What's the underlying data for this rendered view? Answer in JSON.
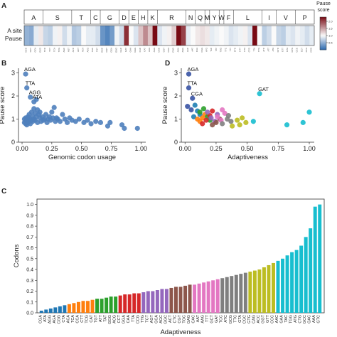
{
  "chart_data": [
    {
      "panel": "A",
      "type": "heatmap",
      "rows": [
        "A site",
        "Pause"
      ],
      "amino_acids": [
        {
          "aa": "A",
          "n": 4
        },
        {
          "aa": "S",
          "n": 6
        },
        {
          "aa": "T",
          "n": 4
        },
        {
          "aa": "C",
          "n": 2
        },
        {
          "aa": "G",
          "n": 4
        },
        {
          "aa": "D",
          "n": 2
        },
        {
          "aa": "E",
          "n": 2
        },
        {
          "aa": "H",
          "n": 2
        },
        {
          "aa": "K",
          "n": 2
        },
        {
          "aa": "R",
          "n": 6
        },
        {
          "aa": "N",
          "n": 2
        },
        {
          "aa": "Q",
          "n": 2
        },
        {
          "aa": "M",
          "n": 1
        },
        {
          "aa": "Y",
          "n": 2
        },
        {
          "aa": "W",
          "n": 1
        },
        {
          "aa": "F",
          "n": 2
        },
        {
          "aa": "L",
          "n": 6
        },
        {
          "aa": "I",
          "n": 3
        },
        {
          "aa": "V",
          "n": 4
        },
        {
          "aa": "P",
          "n": 4
        }
      ],
      "codons": [
        "GCC",
        "GCT",
        "GCA",
        "GCG",
        "TCC",
        "TCT",
        "TCA",
        "TCG",
        "AGC",
        "AGT",
        "ACC",
        "ACT",
        "ACA",
        "ACG",
        "TGC",
        "TGT",
        "GGC",
        "GGT",
        "GGA",
        "GGG",
        "GAC",
        "GAT",
        "GAA",
        "GAG",
        "CAC",
        "CAT",
        "AAA",
        "AAG",
        "CGC",
        "CGT",
        "CGA",
        "CGG",
        "AGA",
        "AGG",
        "AAC",
        "AAT",
        "CAA",
        "CAG",
        "ATG",
        "TAC",
        "TAT",
        "TGG",
        "TTC",
        "TTT",
        "CTC",
        "CTT",
        "CTA",
        "CTG",
        "TTA",
        "TTG",
        "ATC",
        "ATT",
        "ATA",
        "GTC",
        "GTT",
        "GTA",
        "GTG",
        "CCC",
        "CCT",
        "CCA",
        "CCG"
      ],
      "values": [
        0.5,
        0.45,
        0.9,
        1.1,
        0.75,
        0.7,
        0.95,
        1.05,
        0.8,
        0.95,
        0.65,
        0.7,
        1.0,
        0.9,
        0.9,
        0.8,
        0.3,
        0.2,
        0.35,
        0.95,
        0.8,
        2.1,
        1.0,
        0.85,
        1.3,
        1.6,
        1.3,
        2.3,
        0.85,
        0.95,
        1.05,
        1.25,
        2.9,
        2.0,
        0.9,
        1.0,
        1.1,
        1.15,
        1.1,
        0.9,
        0.95,
        1.0,
        0.95,
        0.85,
        0.9,
        0.95,
        1.05,
        0.85,
        2.4,
        1.0,
        0.7,
        0.8,
        1.0,
        0.75,
        0.7,
        0.9,
        0.85,
        0.95,
        0.9,
        0.8,
        0.9
      ],
      "colorbar": {
        "label": "Pause score",
        "ticks": [
          0.5,
          1.0,
          1.5,
          2.0
        ],
        "range": [
          0.0,
          2.3
        ]
      }
    },
    {
      "panel": "B",
      "type": "scatter",
      "xlabel": "Genomic codon usage",
      "ylabel": "Pause score",
      "xlim": [
        -0.03,
        1.04
      ],
      "ylim": [
        0.0,
        3.2
      ],
      "xticks": [
        0.0,
        0.25,
        0.5,
        0.75,
        1.0
      ],
      "yticks": [
        0,
        1,
        2,
        3
      ],
      "color": "#4f80bd",
      "points": [
        [
          0.02,
          0.85
        ],
        [
          0.02,
          1.0
        ],
        [
          0.03,
          0.9
        ],
        [
          0.03,
          0.8
        ],
        [
          0.03,
          1.05
        ],
        [
          0.04,
          0.75
        ],
        [
          0.04,
          0.95
        ],
        [
          0.05,
          1.1
        ],
        [
          0.05,
          0.85
        ],
        [
          0.05,
          1.0
        ],
        [
          0.06,
          0.9
        ],
        [
          0.06,
          1.2
        ],
        [
          0.07,
          0.8
        ],
        [
          0.07,
          1.0
        ],
        [
          0.08,
          0.95
        ],
        [
          0.08,
          1.3
        ],
        [
          0.09,
          1.1
        ],
        [
          0.09,
          0.9
        ],
        [
          0.1,
          1.0
        ],
        [
          0.1,
          1.45
        ],
        [
          0.11,
          1.25
        ],
        [
          0.11,
          0.95
        ],
        [
          0.12,
          1.85
        ],
        [
          0.12,
          1.1
        ],
        [
          0.13,
          1.4
        ],
        [
          0.13,
          0.85
        ],
        [
          0.14,
          1.2
        ],
        [
          0.15,
          1.05
        ],
        [
          0.15,
          1.3
        ],
        [
          0.16,
          0.9
        ],
        [
          0.17,
          1.1
        ],
        [
          0.18,
          0.95
        ],
        [
          0.19,
          1.0
        ],
        [
          0.2,
          1.2
        ],
        [
          0.21,
          0.85
        ],
        [
          0.22,
          1.0
        ],
        [
          0.23,
          1.1
        ],
        [
          0.24,
          0.95
        ],
        [
          0.25,
          1.3
        ],
        [
          0.26,
          1.05
        ],
        [
          0.27,
          1.5
        ],
        [
          0.28,
          0.9
        ],
        [
          0.29,
          1.05
        ],
        [
          0.3,
          1.0
        ],
        [
          0.32,
          0.9
        ],
        [
          0.34,
          1.2
        ],
        [
          0.36,
          1.0
        ],
        [
          0.38,
          0.85
        ],
        [
          0.4,
          1.05
        ],
        [
          0.42,
          0.95
        ],
        [
          0.45,
          0.9
        ],
        [
          0.48,
          1.0
        ],
        [
          0.52,
          0.85
        ],
        [
          0.55,
          0.95
        ],
        [
          0.58,
          0.8
        ],
        [
          0.62,
          0.9
        ],
        [
          0.66,
          0.85
        ],
        [
          0.72,
          0.7
        ],
        [
          0.74,
          0.85
        ],
        [
          0.84,
          0.75
        ],
        [
          0.86,
          0.6
        ],
        [
          0.97,
          0.6
        ],
        [
          0.03,
          2.95
        ],
        [
          0.04,
          2.35
        ],
        [
          0.07,
          1.95
        ],
        [
          0.1,
          1.75
        ]
      ],
      "annotations": [
        {
          "text": "AGA",
          "x": 0.03,
          "y": 2.95
        },
        {
          "text": "TTA",
          "x": 0.04,
          "y": 2.35
        },
        {
          "text": "AGG",
          "x": 0.07,
          "y": 1.95
        },
        {
          "text": "ATA",
          "x": 0.1,
          "y": 1.75
        }
      ]
    },
    {
      "panel": "D",
      "type": "scatter",
      "xlabel": "Adaptiveness",
      "ylabel": "Pause score",
      "xlim": [
        -0.03,
        1.04
      ],
      "ylim": [
        0.0,
        3.2
      ],
      "xticks": [
        0.0,
        0.25,
        0.5,
        0.75,
        1.0
      ],
      "yticks": [
        0,
        1,
        2,
        3
      ],
      "points": [
        [
          0.03,
          2.95,
          "#3953a4"
        ],
        [
          0.03,
          2.35,
          "#3953a4"
        ],
        [
          0.06,
          1.9,
          "#3953a4"
        ],
        [
          0.02,
          1.55,
          "#3953a4"
        ],
        [
          0.05,
          1.4,
          "#3953a4"
        ],
        [
          0.08,
          1.6,
          "#1f7fb4"
        ],
        [
          0.1,
          1.35,
          "#1f7fb4"
        ],
        [
          0.12,
          1.2,
          "#1f7fb4"
        ],
        [
          0.07,
          1.1,
          "#1f7fb4"
        ],
        [
          0.1,
          1.0,
          "#ff7f0e"
        ],
        [
          0.12,
          0.9,
          "#ff7f0e"
        ],
        [
          0.14,
          1.05,
          "#ff7f0e"
        ],
        [
          0.16,
          1.2,
          "#ff7f0e"
        ],
        [
          0.12,
          1.3,
          "#2ca02c"
        ],
        [
          0.15,
          1.45,
          "#2ca02c"
        ],
        [
          0.18,
          1.1,
          "#2ca02c"
        ],
        [
          0.2,
          0.95,
          "#2ca02c"
        ],
        [
          0.14,
          0.8,
          "#d62728"
        ],
        [
          0.17,
          0.95,
          "#d62728"
        ],
        [
          0.2,
          1.15,
          "#d62728"
        ],
        [
          0.22,
          1.35,
          "#d62728"
        ],
        [
          0.18,
          1.3,
          "#9467bd"
        ],
        [
          0.21,
          1.05,
          "#9467bd"
        ],
        [
          0.24,
          0.9,
          "#9467bd"
        ],
        [
          0.26,
          1.2,
          "#9467bd"
        ],
        [
          0.22,
          0.75,
          "#8c564b"
        ],
        [
          0.25,
          0.85,
          "#8c564b"
        ],
        [
          0.28,
          1.0,
          "#8c564b"
        ],
        [
          0.26,
          1.1,
          "#e377c2"
        ],
        [
          0.29,
          0.95,
          "#e377c2"
        ],
        [
          0.32,
          1.25,
          "#e377c2"
        ],
        [
          0.3,
          1.4,
          "#e377c2"
        ],
        [
          0.3,
          0.8,
          "#7f7f7f"
        ],
        [
          0.34,
          1.0,
          "#7f7f7f"
        ],
        [
          0.37,
          0.9,
          "#7f7f7f"
        ],
        [
          0.35,
          1.15,
          "#7f7f7f"
        ],
        [
          0.38,
          0.7,
          "#bcbd22"
        ],
        [
          0.42,
          0.95,
          "#bcbd22"
        ],
        [
          0.46,
          1.05,
          "#bcbd22"
        ],
        [
          0.49,
          0.85,
          "#bcbd22"
        ],
        [
          0.44,
          0.75,
          "#bcbd22"
        ],
        [
          0.55,
          0.9,
          "#17becf"
        ],
        [
          0.6,
          2.1,
          "#17becf"
        ],
        [
          0.82,
          0.75,
          "#17becf"
        ],
        [
          0.95,
          0.85,
          "#17becf"
        ],
        [
          1.0,
          1.3,
          "#17becf"
        ]
      ],
      "annotations": [
        {
          "text": "AGA",
          "x": 0.03,
          "y": 2.95
        },
        {
          "text": "TTA",
          "x": 0.03,
          "y": 2.35
        },
        {
          "text": "CGA",
          "x": 0.06,
          "y": 1.9
        },
        {
          "text": "GAT",
          "x": 0.6,
          "y": 2.1
        }
      ]
    },
    {
      "panel": "C",
      "type": "bar",
      "xlabel": "Adaptiveness",
      "ylabel": "Codons",
      "ylim": [
        0,
        1.05
      ],
      "yticks": [
        0.0,
        0.1,
        0.2,
        0.3,
        0.4,
        0.5,
        0.6,
        0.7,
        0.8,
        0.9,
        1.0
      ],
      "categories": [
        "CGA",
        "ATA",
        "AGG",
        "AGA",
        "CGG",
        "CTA",
        "ACA",
        "TCA",
        "CCA",
        "CTT",
        "TCG",
        "CAT",
        "TGT",
        "ATT",
        "TAT",
        "GGG",
        "ACG",
        "CCT",
        "GGA",
        "CAA",
        "TTA",
        "CCG",
        "TTG",
        "TCT",
        "AGT",
        "GCA",
        "AGC",
        "GGC",
        "ACT",
        "CTC",
        "CGT",
        "TGC",
        "GAG",
        "CAC",
        "AAT",
        "AAG",
        "TTT",
        "GCT",
        "GAT",
        "TCC",
        "ATC",
        "GCG",
        "TTC",
        "GTA",
        "CGC",
        "GTG",
        "CAG",
        "ACC",
        "GGT",
        "GTT",
        "CCC",
        "AAC",
        "GAA",
        "TAC",
        "TGG",
        "ATG",
        "CTG",
        "GCC",
        "GAC",
        "AAA",
        "GTC"
      ],
      "values": [
        0.02,
        0.03,
        0.04,
        0.05,
        0.06,
        0.07,
        0.08,
        0.09,
        0.1,
        0.11,
        0.11,
        0.12,
        0.13,
        0.13,
        0.14,
        0.15,
        0.15,
        0.16,
        0.17,
        0.17,
        0.18,
        0.18,
        0.19,
        0.2,
        0.2,
        0.21,
        0.22,
        0.22,
        0.23,
        0.24,
        0.24,
        0.25,
        0.26,
        0.26,
        0.27,
        0.28,
        0.29,
        0.3,
        0.31,
        0.32,
        0.33,
        0.34,
        0.35,
        0.36,
        0.37,
        0.38,
        0.39,
        0.4,
        0.42,
        0.44,
        0.46,
        0.48,
        0.5,
        0.53,
        0.56,
        0.58,
        0.62,
        0.7,
        0.78,
        0.98,
        1.0
      ],
      "colors": [
        "#1f77b4",
        "#1f77b4",
        "#1f77b4",
        "#1f77b4",
        "#1f77b4",
        "#1f77b4",
        "#ff7f0e",
        "#ff7f0e",
        "#ff7f0e",
        "#ff7f0e",
        "#ff7f0e",
        "#ff7f0e",
        "#2ca02c",
        "#2ca02c",
        "#2ca02c",
        "#2ca02c",
        "#2ca02c",
        "#d62728",
        "#d62728",
        "#d62728",
        "#d62728",
        "#d62728",
        "#9467bd",
        "#9467bd",
        "#9467bd",
        "#9467bd",
        "#9467bd",
        "#9467bd",
        "#8c564b",
        "#8c564b",
        "#8c564b",
        "#8c564b",
        "#8c564b",
        "#e377c2",
        "#e377c2",
        "#e377c2",
        "#e377c2",
        "#e377c2",
        "#e377c2",
        "#7f7f7f",
        "#7f7f7f",
        "#7f7f7f",
        "#7f7f7f",
        "#7f7f7f",
        "#7f7f7f",
        "#bcbd22",
        "#bcbd22",
        "#bcbd22",
        "#bcbd22",
        "#bcbd22",
        "#bcbd22",
        "#17becf",
        "#17becf",
        "#17becf",
        "#17becf",
        "#17becf",
        "#17becf",
        "#17becf",
        "#17becf",
        "#17becf",
        "#17becf"
      ]
    }
  ],
  "panel_letters": [
    "A",
    "B",
    "D",
    "C"
  ]
}
